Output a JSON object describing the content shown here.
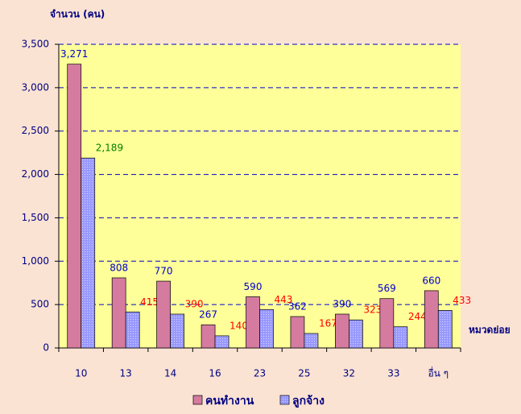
{
  "chart_data": {
    "type": "bar",
    "y_label": "จำนวน (คน)",
    "x_label": "หมวดย่อย",
    "categories": [
      "10",
      "13",
      "14",
      "16",
      "23",
      "25",
      "32",
      "33",
      "อื่น ๆ"
    ],
    "series": [
      {
        "name": "คนทำงาน",
        "color": "#d57ba0",
        "label_color": "#0000cc",
        "values": [
          3271,
          808,
          770,
          267,
          590,
          362,
          390,
          569,
          660
        ],
        "value_labels": [
          "3,271",
          "808",
          "770",
          "267",
          "590",
          "362",
          "390",
          "569",
          "660"
        ]
      },
      {
        "name": "ลูกจ้าง",
        "color": "#9999ff",
        "label_color": "#ff0000",
        "value_label_colors": [
          "#008000",
          "#ff0000",
          "#ff0000",
          "#ff0000",
          "#ff0000",
          "#ff0000",
          "#ff0000",
          "#ff0000",
          "#ff0000"
        ],
        "values": [
          2189,
          415,
          390,
          140,
          443,
          167,
          323,
          244,
          433
        ],
        "value_labels": [
          "2,189",
          "415",
          "390",
          "140",
          "443",
          "167",
          "323",
          "244",
          "433"
        ]
      }
    ],
    "ylim": [
      0,
      3500
    ],
    "yticks": [
      0,
      500,
      {
        "value": 1000,
        "label": "1,000"
      },
      {
        "value": 1500,
        "label": "1,500"
      },
      {
        "value": 2000,
        "label": "2,000"
      },
      {
        "value": 2500,
        "label": "2,500"
      },
      {
        "value": 3000,
        "label": "3,000"
      },
      {
        "value": 3500,
        "label": "3,500"
      }
    ],
    "grid": true,
    "plot_color": "#ffff99",
    "grid_color": "#0000cc",
    "legend": "bottom"
  }
}
